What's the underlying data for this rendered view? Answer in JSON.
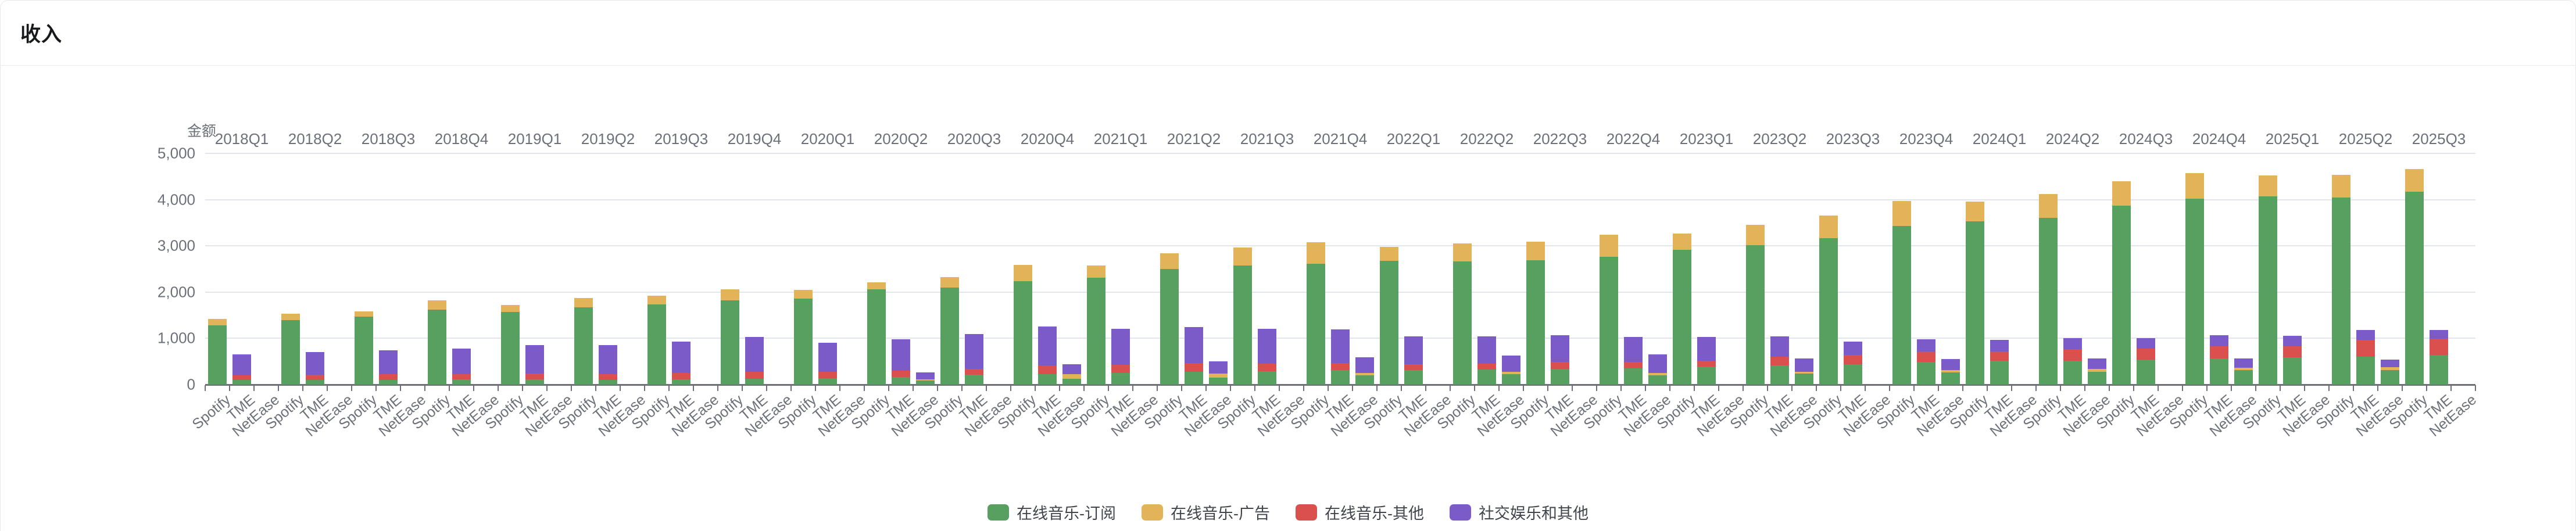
{
  "page": {
    "title": "收入"
  },
  "chart_data": {
    "type": "bar",
    "stacked": true,
    "title": "收入",
    "unit_label": "金额",
    "grid": true,
    "legend_position": "bottom-center",
    "y_axis": {
      "min": 0,
      "max": 5000,
      "tick_step": 1000,
      "tick_labels": [
        "5,000",
        "4,000",
        "3,000",
        "2,000",
        "1,000",
        "0"
      ],
      "tick_values": [
        5000,
        4000,
        3000,
        2000,
        1000,
        0
      ]
    },
    "quarters": [
      "2018Q1",
      "2018Q2",
      "2018Q3",
      "2018Q4",
      "2019Q1",
      "2019Q2",
      "2019Q3",
      "2019Q4",
      "2020Q1",
      "2020Q2",
      "2020Q3",
      "2020Q4",
      "2021Q1",
      "2021Q2",
      "2021Q3",
      "2021Q4",
      "2022Q1",
      "2022Q2",
      "2022Q3",
      "2022Q4",
      "2023Q1",
      "2023Q2",
      "2023Q3",
      "2023Q4",
      "2024Q1",
      "2024Q2",
      "2024Q3",
      "2024Q4",
      "2025Q1",
      "2025Q2",
      "2025Q3"
    ],
    "companies": [
      "Spotify",
      "TME",
      "NetEase"
    ],
    "series": [
      {
        "name": "在线音乐-订阅",
        "color": "#57a05f",
        "values": {
          "Spotify": [
            1285,
            1400,
            1465,
            1625,
            1570,
            1670,
            1735,
            1820,
            1865,
            2060,
            2100,
            2240,
            2315,
            2500,
            2575,
            2610,
            2670,
            2660,
            2685,
            2770,
            2915,
            3015,
            3170,
            3425,
            3535,
            3610,
            3870,
            4025,
            4070,
            4040,
            4165
          ],
          "TME": [
            100,
            100,
            105,
            110,
            110,
            105,
            115,
            130,
            140,
            160,
            210,
            230,
            255,
            275,
            295,
            310,
            320,
            325,
            335,
            350,
            390,
            420,
            445,
            485,
            510,
            515,
            545,
            570,
            585,
            605,
            645
          ],
          "NetEase": [
            null,
            null,
            null,
            null,
            null,
            null,
            null,
            null,
            null,
            85,
            null,
            120,
            null,
            150,
            null,
            195,
            null,
            230,
            null,
            205,
            null,
            235,
            null,
            265,
            null,
            280,
            null,
            310,
            null,
            320,
            null
          ]
        }
      },
      {
        "name": "在线音乐-广告",
        "color": "#e3b359",
        "values": {
          "Spotify": [
            135,
            135,
            120,
            200,
            145,
            200,
            185,
            245,
            180,
            150,
            230,
            345,
            265,
            335,
            390,
            470,
            310,
            395,
            400,
            470,
            350,
            445,
            490,
            540,
            425,
            505,
            525,
            550,
            455,
            495,
            490
          ],
          "TME": [
            0,
            0,
            0,
            0,
            0,
            0,
            0,
            0,
            0,
            0,
            0,
            0,
            0,
            0,
            0,
            0,
            0,
            0,
            0,
            0,
            0,
            0,
            0,
            0,
            0,
            0,
            0,
            0,
            0,
            0,
            0
          ],
          "NetEase": [
            null,
            null,
            null,
            null,
            null,
            null,
            null,
            null,
            null,
            25,
            null,
            100,
            null,
            85,
            null,
            55,
            null,
            45,
            null,
            50,
            null,
            40,
            null,
            45,
            null,
            55,
            null,
            55,
            null,
            55,
            null
          ]
        }
      },
      {
        "name": "在线音乐-其他",
        "color": "#d9504f",
        "values": {
          "Spotify": [
            0,
            0,
            0,
            0,
            0,
            0,
            0,
            0,
            0,
            0,
            0,
            0,
            0,
            0,
            0,
            0,
            0,
            0,
            0,
            0,
            0,
            0,
            0,
            0,
            0,
            0,
            0,
            0,
            0,
            0,
            0
          ],
          "TME": [
            100,
            110,
            115,
            120,
            125,
            120,
            135,
            150,
            140,
            140,
            125,
            190,
            175,
            195,
            160,
            155,
            115,
            125,
            155,
            145,
            130,
            180,
            195,
            235,
            205,
            255,
            240,
            265,
            240,
            360,
            345
          ],
          "NetEase": [
            null,
            null,
            null,
            null,
            null,
            null,
            null,
            null,
            null,
            0,
            null,
            0,
            null,
            0,
            null,
            0,
            null,
            0,
            null,
            0,
            null,
            0,
            null,
            0,
            null,
            0,
            null,
            0,
            null,
            0,
            null
          ]
        }
      },
      {
        "name": "社交娱乐和其他",
        "color": "#7a5bc7",
        "values": {
          "Spotify": [
            0,
            0,
            0,
            0,
            0,
            0,
            0,
            0,
            0,
            0,
            0,
            0,
            0,
            0,
            0,
            0,
            0,
            0,
            0,
            0,
            0,
            0,
            0,
            0,
            0,
            0,
            0,
            0,
            0,
            0,
            0
          ],
          "TME": [
            455,
            495,
            525,
            555,
            625,
            635,
            680,
            745,
            630,
            680,
            755,
            840,
            775,
            775,
            755,
            725,
            610,
            590,
            575,
            540,
            510,
            440,
            290,
            265,
            255,
            240,
            215,
            235,
            230,
            215,
            195
          ],
          "NetEase": [
            null,
            null,
            null,
            null,
            null,
            null,
            null,
            null,
            null,
            150,
            null,
            215,
            null,
            265,
            null,
            345,
            null,
            355,
            null,
            400,
            null,
            285,
            null,
            240,
            null,
            230,
            null,
            195,
            null,
            170,
            null
          ]
        }
      }
    ],
    "legend": [
      "在线音乐-订阅",
      "在线音乐-广告",
      "在线音乐-其他",
      "社交娱乐和其他"
    ]
  }
}
